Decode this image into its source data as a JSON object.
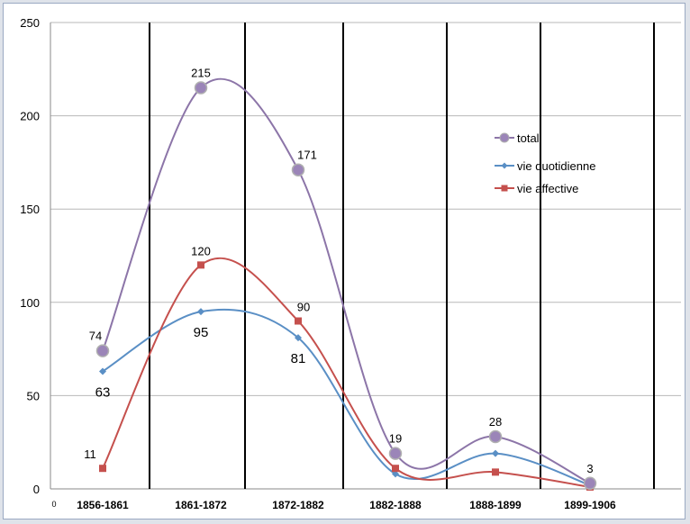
{
  "chart_data": {
    "type": "line",
    "title": "",
    "xlabel": "",
    "ylabel": "",
    "ylim": [
      0,
      250
    ],
    "yticks": [
      0,
      50,
      100,
      150,
      200,
      250
    ],
    "x_origin_label": "0",
    "categories": [
      "1856-1861",
      "1861-1872",
      "1872-1882",
      "1882-1888",
      "1888-1899",
      "1899-1906"
    ],
    "grid": "horizontal",
    "smooth": true,
    "legend_position": "right",
    "series": [
      {
        "name": "total",
        "values": [
          74,
          215,
          171,
          19,
          28,
          3
        ],
        "color": "#8c75a8",
        "marker": "circle",
        "labels": [
          "74",
          "215",
          "171",
          "19",
          "28",
          "3"
        ]
      },
      {
        "name": "vie quotidienne",
        "values": [
          63,
          95,
          81,
          8,
          19,
          2
        ],
        "color": "#5a8fc5",
        "marker": "diamond",
        "labels": [
          "63",
          "95",
          "81",
          "",
          "",
          ""
        ]
      },
      {
        "name": "vie affective",
        "values": [
          11,
          120,
          90,
          11,
          9,
          1
        ],
        "color": "#c5504d",
        "marker": "square",
        "labels": [
          "11",
          "120",
          "90",
          "",
          "",
          ""
        ]
      }
    ]
  }
}
